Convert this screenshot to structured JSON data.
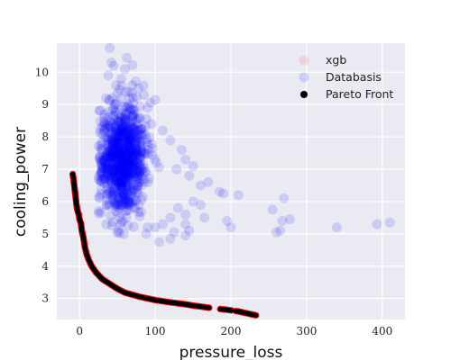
{
  "chart_data": {
    "type": "scatter",
    "xlabel": "pressure_loss",
    "ylabel": "cooling_power",
    "xlim": [
      -30,
      430
    ],
    "ylim": [
      2.35,
      10.9
    ],
    "x_ticks": [
      0,
      100,
      200,
      300,
      400
    ],
    "y_ticks": [
      3,
      4,
      5,
      6,
      7,
      8,
      9,
      10
    ],
    "grid": true,
    "legend_position": "top-right",
    "series": [
      {
        "name": "xgb",
        "marker": "circle",
        "color": "#ff9999",
        "alpha": 0.3,
        "points": []
      },
      {
        "name": "Databasis",
        "marker": "circle",
        "color": "#0000ff",
        "alpha": 0.13,
        "cluster": {
          "note_center": [
            52,
            7.3
          ],
          "x_range": [
            25,
            110
          ],
          "y_range": [
            4.9,
            10.8
          ]
        },
        "points": [
          [
            40,
            10.75
          ],
          [
            42,
            10.3
          ],
          [
            45,
            10.2
          ],
          [
            60,
            10.1
          ],
          [
            38,
            9.9
          ],
          [
            55,
            9.8
          ],
          [
            70,
            9.6
          ],
          [
            78,
            9.5
          ],
          [
            65,
            9.4
          ],
          [
            85,
            9.3
          ],
          [
            100,
            9.15
          ],
          [
            48,
            9.6
          ],
          [
            35,
            9.2
          ],
          [
            90,
            8.9
          ],
          [
            80,
            8.6
          ],
          [
            95,
            8.4
          ],
          [
            110,
            8.2
          ],
          [
            120,
            7.9
          ],
          [
            135,
            7.6
          ],
          [
            140,
            7.3
          ],
          [
            150,
            7.1
          ],
          [
            128,
            7.0
          ],
          [
            145,
            6.8
          ],
          [
            160,
            6.5
          ],
          [
            170,
            6.6
          ],
          [
            185,
            6.3
          ],
          [
            190,
            6.25
          ],
          [
            210,
            6.2
          ],
          [
            150,
            6.0
          ],
          [
            160,
            5.9
          ],
          [
            130,
            5.8
          ],
          [
            140,
            5.6
          ],
          [
            165,
            5.5
          ],
          [
            120,
            5.5
          ],
          [
            110,
            5.3
          ],
          [
            100,
            5.2
          ],
          [
            90,
            5.2
          ],
          [
            88,
            5.0
          ],
          [
            105,
            4.75
          ],
          [
            120,
            4.85
          ],
          [
            125,
            5.05
          ],
          [
            140,
            5.3
          ],
          [
            145,
            5.1
          ],
          [
            140,
            4.95
          ],
          [
            195,
            5.4
          ],
          [
            200,
            5.2
          ],
          [
            255,
            5.75
          ],
          [
            270,
            6.1
          ],
          [
            268,
            5.4
          ],
          [
            265,
            5.1
          ],
          [
            278,
            5.45
          ],
          [
            260,
            5.05
          ],
          [
            340,
            5.2
          ],
          [
            393,
            5.3
          ],
          [
            410,
            5.35
          ]
        ]
      },
      {
        "name": "Pareto Front",
        "marker": "circle",
        "color": "#000000",
        "edge_color": "#ff0000",
        "alpha": 1.0,
        "points": [
          [
            -9,
            6.85
          ],
          [
            -8,
            6.7
          ],
          [
            -7,
            6.5
          ],
          [
            -6,
            6.3
          ],
          [
            -5,
            6.1
          ],
          [
            -4,
            5.9
          ],
          [
            -3,
            5.75
          ],
          [
            -1,
            5.6
          ],
          [
            0,
            5.45
          ],
          [
            2,
            5.3
          ],
          [
            3,
            5.1
          ],
          [
            5,
            4.9
          ],
          [
            7,
            4.6
          ],
          [
            9,
            4.4
          ],
          [
            12,
            4.2
          ],
          [
            16,
            4.0
          ],
          [
            22,
            3.8
          ],
          [
            30,
            3.6
          ],
          [
            40,
            3.45
          ],
          [
            50,
            3.3
          ],
          [
            60,
            3.18
          ],
          [
            80,
            3.05
          ],
          [
            100,
            2.95
          ],
          [
            120,
            2.88
          ],
          [
            140,
            2.82
          ],
          [
            150,
            2.78
          ],
          [
            160,
            2.75
          ],
          [
            175,
            2.7
          ],
          [
            195,
            2.65
          ],
          [
            210,
            2.6
          ],
          [
            225,
            2.52
          ],
          [
            233,
            2.48
          ]
        ]
      }
    ]
  }
}
